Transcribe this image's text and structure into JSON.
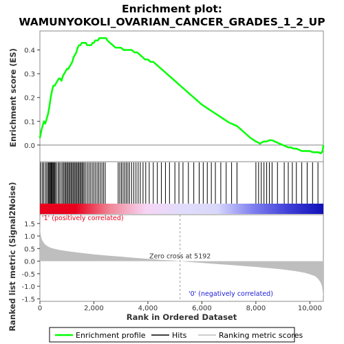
{
  "chart_data": {
    "type": "line",
    "title_line1": "Enrichment plot:",
    "title_line2": "WAMUNYOKOLI_OVARIAN_CANCER_GRADES_1_2_UP",
    "top_panel": {
      "ylabel": "Enrichment score (ES)",
      "ylim": [
        -0.07,
        0.48
      ],
      "yticks": [
        "0.0",
        "0.1",
        "0.2",
        "0.3",
        "0.4"
      ],
      "ytick_values": [
        0.0,
        0.1,
        0.2,
        0.3,
        0.4
      ],
      "xlim": [
        0,
        10500
      ],
      "series": [
        {
          "name": "Enrichment profile",
          "color": "#00ff00",
          "x": [
            0,
            50,
            100,
            150,
            200,
            250,
            300,
            350,
            400,
            450,
            500,
            550,
            600,
            650,
            700,
            750,
            800,
            850,
            900,
            950,
            1000,
            1050,
            1100,
            1150,
            1200,
            1250,
            1300,
            1350,
            1400,
            1450,
            1500,
            1550,
            1600,
            1650,
            1700,
            1750,
            1800,
            1850,
            1900,
            1950,
            2000,
            2050,
            2100,
            2150,
            2200,
            2250,
            2300,
            2350,
            2400,
            2450,
            2500,
            2600,
            2700,
            2800,
            2900,
            3000,
            3100,
            3200,
            3300,
            3400,
            3500,
            3600,
            3700,
            3800,
            3900,
            4000,
            4100,
            4200,
            4400,
            4600,
            4800,
            5000,
            5200,
            5400,
            5600,
            5800,
            6000,
            6200,
            6400,
            6600,
            6800,
            7000,
            7200,
            7300,
            7400,
            7600,
            7800,
            8000,
            8100,
            8150,
            8200,
            8300,
            8400,
            8500,
            8600,
            8700,
            8800,
            8900,
            9000,
            9100,
            9200,
            9300,
            9400,
            9500,
            9600,
            9700,
            9800,
            9900,
            10000,
            10100,
            10200,
            10300,
            10400,
            10450,
            10480,
            10500
          ],
          "y": [
            0.03,
            0.06,
            0.08,
            0.1,
            0.09,
            0.11,
            0.13,
            0.16,
            0.2,
            0.23,
            0.25,
            0.25,
            0.26,
            0.27,
            0.28,
            0.28,
            0.27,
            0.29,
            0.3,
            0.31,
            0.32,
            0.32,
            0.33,
            0.34,
            0.35,
            0.37,
            0.38,
            0.39,
            0.41,
            0.42,
            0.42,
            0.43,
            0.43,
            0.43,
            0.43,
            0.42,
            0.42,
            0.42,
            0.42,
            0.43,
            0.43,
            0.44,
            0.44,
            0.44,
            0.45,
            0.45,
            0.45,
            0.45,
            0.45,
            0.45,
            0.44,
            0.43,
            0.42,
            0.41,
            0.41,
            0.41,
            0.4,
            0.4,
            0.4,
            0.4,
            0.39,
            0.39,
            0.38,
            0.37,
            0.36,
            0.36,
            0.35,
            0.35,
            0.33,
            0.31,
            0.29,
            0.27,
            0.25,
            0.23,
            0.21,
            0.19,
            0.17,
            0.155,
            0.14,
            0.125,
            0.11,
            0.095,
            0.085,
            0.08,
            0.07,
            0.05,
            0.03,
            0.015,
            0.01,
            0.005,
            0.01,
            0.015,
            0.015,
            0.02,
            0.02,
            0.015,
            0.01,
            0.005,
            0.0,
            -0.005,
            -0.01,
            -0.01,
            -0.015,
            -0.015,
            -0.02,
            -0.025,
            -0.025,
            -0.025,
            -0.025,
            -0.03,
            -0.03,
            -0.03,
            -0.035,
            -0.03,
            -0.02,
            0.0
          ]
        }
      ]
    },
    "hits_panel": {
      "hit_ranks": [
        30,
        90,
        140,
        200,
        250,
        300,
        330,
        360,
        390,
        420,
        450,
        480,
        510,
        540,
        570,
        620,
        680,
        720,
        780,
        830,
        880,
        920,
        960,
        1000,
        1040,
        1080,
        1120,
        1160,
        1200,
        1240,
        1280,
        1320,
        1360,
        1400,
        1440,
        1480,
        1520,
        1560,
        1600,
        1640,
        1700,
        1760,
        1820,
        1880,
        1940,
        2000,
        2060,
        2120,
        2180,
        2240,
        2300,
        2360,
        2420,
        2900,
        2960,
        3020,
        3080,
        3140,
        3200,
        3260,
        3320,
        3400,
        3480,
        3560,
        3640,
        3720,
        3820,
        3920,
        4050,
        4200,
        4350,
        4500,
        4650,
        4800,
        5000,
        5150,
        5300,
        5500,
        5700,
        5900,
        6050,
        6200,
        6350,
        6500,
        6700,
        6900,
        7100,
        7300,
        8000,
        8100,
        8200,
        8300,
        8400,
        8500,
        8600,
        8800,
        9050,
        9200,
        9350,
        9500,
        9700,
        9900,
        10100,
        10300
      ],
      "gradient_stops": [
        "#e8001c",
        "#e8001c",
        "#f08a9a",
        "#f7d5f5",
        "#e0dcfb",
        "#d8d8fb",
        "#8080f0",
        "#4040d8",
        "#1010b8"
      ]
    },
    "bottom_panel": {
      "ylabel": "Ranked list metric (Signal2Noise)",
      "xlabel": "Rank in Ordered Dataset",
      "ylim": [
        -1.6,
        1.85
      ],
      "yticks": [
        "1.5",
        "1.0",
        "0.5",
        "0.0",
        "-0.5",
        "-1.0",
        "-1.5"
      ],
      "ytick_values": [
        1.5,
        1.0,
        0.5,
        0.0,
        -0.5,
        -1.0,
        -1.5
      ],
      "xticks": [
        "0",
        "2,000",
        "4,000",
        "6,000",
        "8,000",
        "10,000"
      ],
      "xtick_values": [
        0,
        2000,
        4000,
        6000,
        8000,
        10000
      ],
      "xlim": [
        0,
        10500
      ],
      "fill_color": "#bebebe",
      "metric_x": [
        0,
        10,
        30,
        60,
        100,
        150,
        200,
        300,
        400,
        500,
        700,
        1000,
        1500,
        2000,
        2500,
        3000,
        3500,
        4000,
        4500,
        5000,
        5192,
        5500,
        6000,
        6500,
        7000,
        7500,
        8000,
        8500,
        9000,
        9500,
        9800,
        10000,
        10200,
        10300,
        10400,
        10450,
        10480,
        10500
      ],
      "metric_y": [
        1.7,
        1.2,
        1.05,
        0.9,
        0.8,
        0.72,
        0.66,
        0.58,
        0.53,
        0.5,
        0.45,
        0.4,
        0.33,
        0.27,
        0.22,
        0.18,
        0.13,
        0.09,
        0.05,
        0.02,
        0.0,
        -0.03,
        -0.07,
        -0.11,
        -0.15,
        -0.19,
        -0.23,
        -0.28,
        -0.33,
        -0.4,
        -0.46,
        -0.52,
        -0.6,
        -0.7,
        -0.85,
        -1.0,
        -1.25,
        -1.42
      ],
      "zero_cross": 5192,
      "zero_cross_label": "Zero cross at 5192",
      "pos_label": "'1' (positively correlated)",
      "neg_label": "'0' (negatively correlated)",
      "pos_color": "#e8001c",
      "neg_color": "#1a1ad8"
    },
    "legend": {
      "placement": "bottom",
      "entries": [
        {
          "label": "Enrichment profile",
          "color": "#00ff00"
        },
        {
          "label": "Hits",
          "color": "#000000"
        },
        {
          "label": "Ranking metric scores",
          "color": "#bebebe"
        }
      ]
    }
  }
}
